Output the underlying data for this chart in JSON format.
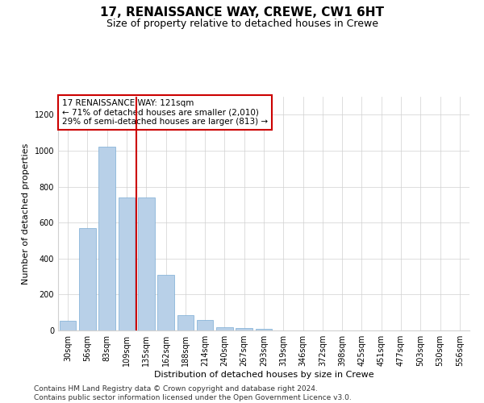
{
  "title": "17, RENAISSANCE WAY, CREWE, CW1 6HT",
  "subtitle": "Size of property relative to detached houses in Crewe",
  "xlabel": "Distribution of detached houses by size in Crewe",
  "ylabel": "Number of detached properties",
  "categories": [
    "30sqm",
    "56sqm",
    "83sqm",
    "109sqm",
    "135sqm",
    "162sqm",
    "188sqm",
    "214sqm",
    "240sqm",
    "267sqm",
    "293sqm",
    "319sqm",
    "346sqm",
    "372sqm",
    "398sqm",
    "425sqm",
    "451sqm",
    "477sqm",
    "503sqm",
    "530sqm",
    "556sqm"
  ],
  "values": [
    55,
    570,
    1020,
    740,
    740,
    310,
    85,
    60,
    20,
    15,
    10,
    0,
    0,
    0,
    0,
    0,
    0,
    0,
    0,
    0,
    0
  ],
  "bar_color": "#b8d0e8",
  "bar_edge_color": "#7aacd4",
  "highlight_line_index": 4,
  "highlight_line_color": "#cc0000",
  "annotation_text": "17 RENAISSANCE WAY: 121sqm\n← 71% of detached houses are smaller (2,010)\n29% of semi-detached houses are larger (813) →",
  "annotation_box_color": "#ffffff",
  "annotation_box_edge": "#cc0000",
  "ylim": [
    0,
    1300
  ],
  "yticks": [
    0,
    200,
    400,
    600,
    800,
    1000,
    1200
  ],
  "footer": "Contains HM Land Registry data © Crown copyright and database right 2024.\nContains public sector information licensed under the Open Government Licence v3.0.",
  "background_color": "#ffffff",
  "grid_color": "#d0d0d0",
  "title_fontsize": 11,
  "subtitle_fontsize": 9,
  "axis_label_fontsize": 8,
  "tick_fontsize": 7,
  "annotation_fontsize": 7.5,
  "footer_fontsize": 6.5
}
